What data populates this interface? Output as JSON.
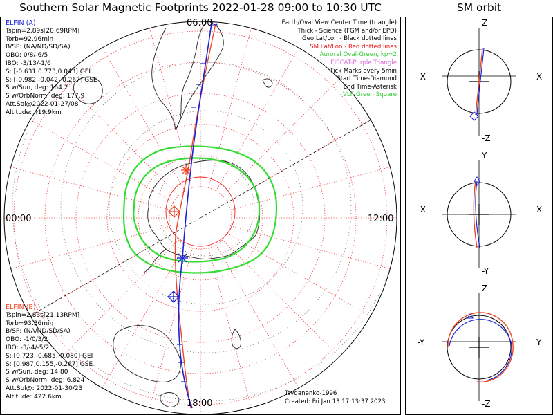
{
  "title": "Southern Solar Magnetic Footprints 2022-01-28 09:00 to 10:30 UTC",
  "orbit_title": "SM orbit",
  "map": {
    "mlt_labels": {
      "top": "06:00",
      "left": "00:00",
      "right": "12:00",
      "bottom": "18:00"
    }
  },
  "elfin_a": {
    "name": "ELFIN (A)",
    "color": "#1a22d8",
    "lines": [
      "Tspin=2.89s[20.69RPM]",
      "Torb=92.96min",
      "B/SP: (NA/ND/SD/SA)",
      "OBO: 0/8/-6/5",
      "IBO: -3/13/-1/6",
      "S: [-0.631,0.773,0.043] GEI",
      "S: [-0.982,-0.042,-0.267] GSE",
      "S w/Sun, deg: 164.2",
      "S w/OrbNorm, deg: 177.9",
      "Att.Sol@2022-01-27/08",
      "Altitude: 419.9km"
    ]
  },
  "elfin_b": {
    "name": "ELFIN (B)",
    "color": "#ee4422",
    "lines": [
      "Tspin=2.83s[21.13RPM]",
      "Torb=93.36min",
      "B/SP: (NA/ND/SD/SA)",
      "OBO: -1/0/3/2",
      "IBO: -3/-4/-5/2",
      "S: [0.723,-0.685,-0.080] GEI",
      "S: [0.987,0.155,-0.267] GSE",
      "S w/Sun, deg: 14.80",
      "S w/OrbNorm, deg: 6.824",
      "Att.Sol@: 2022-01-30/23",
      "Altitude: 422.6km"
    ]
  },
  "legend": [
    {
      "text": "Earth/Oval View Center Time (triangle)",
      "color": "#000000"
    },
    {
      "text": "Thick - Science (FGM and/or EPD)",
      "color": "#000000"
    },
    {
      "text": "Geo Lat/Lon - Black dotted lines",
      "color": "#000000"
    },
    {
      "text": "SM Lat/Lon - Red dotted lines",
      "color": "#ee1111"
    },
    {
      "text": "Auroral Oval-Green, kp=2",
      "color": "#33cc33"
    },
    {
      "text": "EISCAT-Purple Triangle",
      "color": "#dd66dd"
    },
    {
      "text": "Tick Marks every 5min",
      "color": "#000000"
    },
    {
      "text": "Start Time-Diamond",
      "color": "#000000"
    },
    {
      "text": "End Time-Asterisk",
      "color": "#000000"
    },
    {
      "text": "VLF-Green Square",
      "color": "#33cc33"
    }
  ],
  "credits": {
    "model": "Tsyganenko-1996",
    "created": "Created: Fri Jan 13 17:13:37 2023"
  },
  "orbit_panels": [
    {
      "top": "Z",
      "bottom": "-Z",
      "left": "-X",
      "right": "X"
    },
    {
      "top": "Y",
      "bottom": "-Y",
      "left": "-X",
      "right": "X"
    },
    {
      "top": "Z",
      "bottom": "-Z",
      "left": "-Y",
      "right": "Y"
    }
  ]
}
